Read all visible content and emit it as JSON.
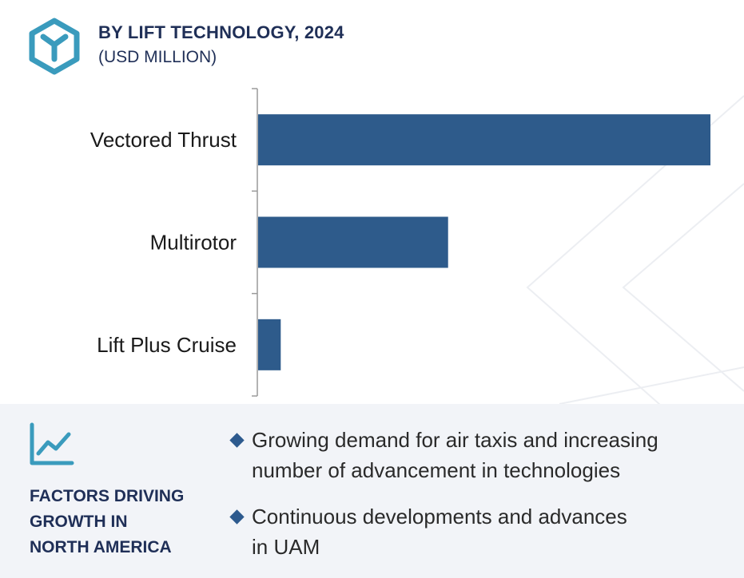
{
  "header": {
    "title": "BY LIFT TECHNOLOGY, 2024",
    "subtitle": "(USD MILLION)",
    "icon": "cube-y-icon"
  },
  "chart_data": {
    "type": "bar",
    "orientation": "horizontal",
    "categories": [
      "Vectored Thrust",
      "Multirotor",
      "Lift Plus Cruise"
    ],
    "values": [
      100,
      42,
      5
    ],
    "bar_color": "#2e5b8b",
    "xlim": [
      0,
      100
    ],
    "grid": false,
    "legend": "none"
  },
  "footer": {
    "icon": "line-chart-icon",
    "factors_title_lines": [
      "FACTORS DRIVING",
      "GROWTH IN",
      "NORTH AMERICA"
    ],
    "bullets": [
      {
        "lines": [
          "Growing demand for air taxis and increasing",
          "number of advancement in technologies"
        ]
      },
      {
        "lines": [
          "Continuous developments and advances",
          "in UAM"
        ]
      }
    ]
  },
  "colors": {
    "accent": "#2e5b8b",
    "title": "#1f2f57",
    "icon_teal": "#3a9bbd",
    "footer_bg": "#f2f4f8"
  }
}
